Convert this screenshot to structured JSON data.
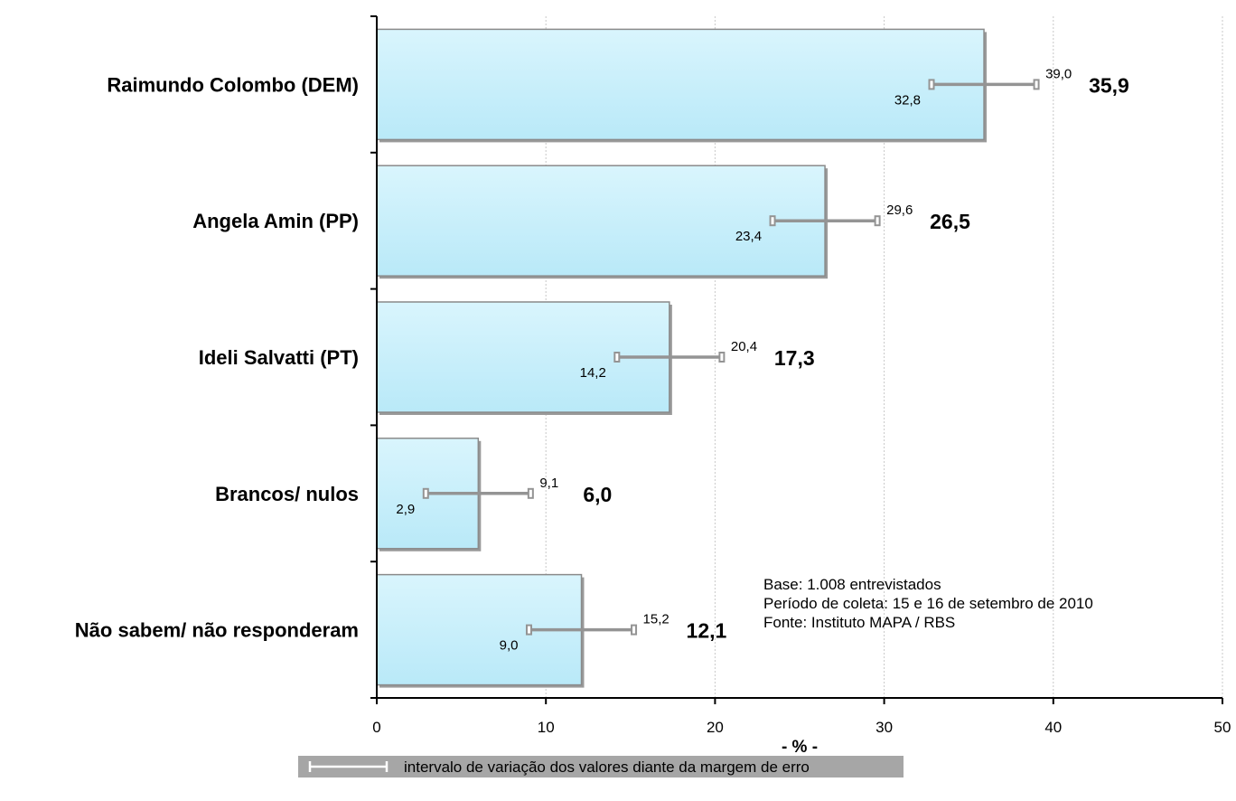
{
  "chart_data": {
    "type": "bar",
    "orientation": "horizontal",
    "categories": [
      "Raimundo Colombo (DEM)",
      "Angela Amin (PP)",
      "Ideli Salvatti (PT)",
      "Brancos/ nulos",
      "Não sabem/ não responderam"
    ],
    "values": [
      35.9,
      26.5,
      17.3,
      6.0,
      12.1
    ],
    "value_labels": [
      "35,9",
      "26,5",
      "17,3",
      "6,0",
      "12,1"
    ],
    "error_low": [
      32.8,
      23.4,
      14.2,
      2.9,
      9.0
    ],
    "error_high": [
      39.0,
      29.6,
      20.4,
      9.1,
      15.2
    ],
    "error_low_labels": [
      "32,8",
      "23,4",
      "14,2",
      "2,9",
      "9,0"
    ],
    "error_high_labels": [
      "39,0",
      "29,6",
      "20,4",
      "9,1",
      "15,2"
    ],
    "xlabel": "- % -",
    "xlim": [
      0,
      50
    ],
    "xticks": [
      0,
      10,
      20,
      30,
      40,
      50
    ],
    "grid": "vertical dashed",
    "notes": [
      "Base: 1.008 entrevistados",
      "Período de coleta: 15 e 16 de setembro de 2010",
      "Fonte: Instituto MAPA / RBS"
    ],
    "legend": "intervalo de variação dos valores diante da margem de erro",
    "legend_position": "bottom",
    "colors": {
      "bar_fill": "#c5eefa",
      "bar_border": "#8a8a8a",
      "error_bar": "#949494",
      "legend_bg": "#a6a6a6",
      "grid": "#c8c8c8"
    }
  }
}
